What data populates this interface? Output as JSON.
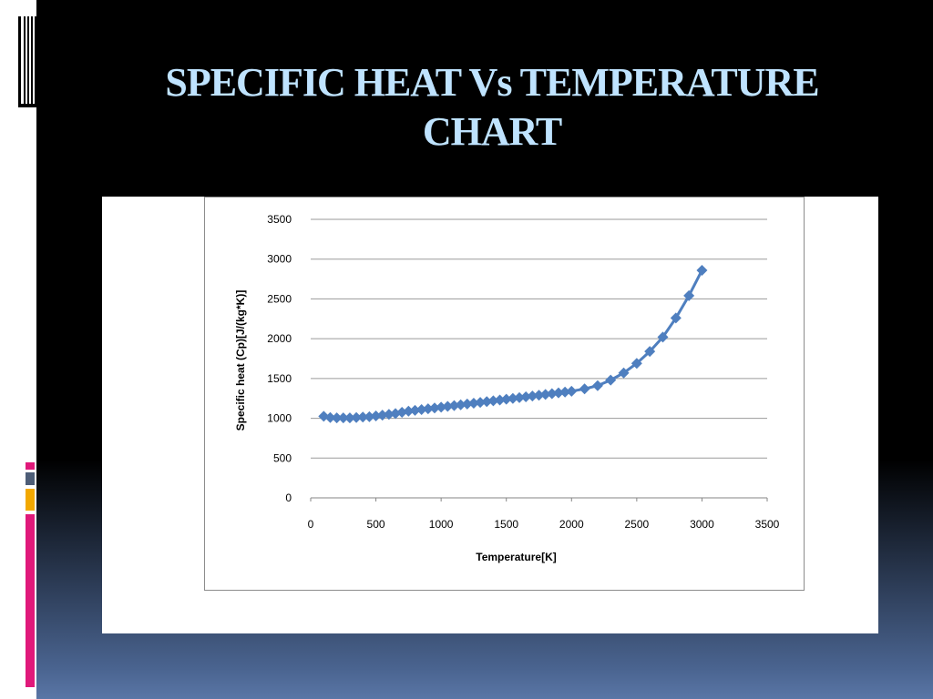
{
  "slide": {
    "title": "SPECIFIC HEAT Vs TEMPERATURE\nCHART",
    "colors": {
      "title": "#bfe3ff",
      "accent_pink": "#e0197a",
      "accent_gray": "#4d5d77",
      "accent_orange": "#f2a800",
      "series": "#4f7fbf"
    },
    "icons": [
      "document-stack-icon"
    ]
  },
  "chart_data": {
    "type": "scatter",
    "title": "",
    "xlabel": "Temperature[K]",
    "ylabel": "Specific heat (Cp)[J/(kg*K)]",
    "xlim": [
      0,
      3500
    ],
    "ylim": [
      0,
      3500
    ],
    "xticks": [
      0,
      500,
      1000,
      1500,
      2000,
      2500,
      3000,
      3500
    ],
    "yticks": [
      0,
      500,
      1000,
      1500,
      2000,
      2500,
      3000,
      3500
    ],
    "grid": "horizontal",
    "legend": "none",
    "marker": "diamond",
    "line": true,
    "series": [
      {
        "x": [
          100,
          150,
          200,
          250,
          300,
          350,
          400,
          450,
          500,
          550,
          600,
          650,
          700,
          750,
          800,
          850,
          900,
          950,
          1000,
          1050,
          1100,
          1150,
          1200,
          1250,
          1300,
          1350,
          1400,
          1450,
          1500,
          1550,
          1600,
          1650,
          1700,
          1750,
          1800,
          1850,
          1900,
          1950,
          2000,
          2100,
          2200,
          2300,
          2400,
          2500,
          2600,
          2700,
          2800,
          2900,
          3000
        ],
        "y": [
          1025,
          1010,
          1005,
          1005,
          1005,
          1010,
          1015,
          1020,
          1030,
          1040,
          1050,
          1060,
          1075,
          1090,
          1100,
          1110,
          1120,
          1130,
          1140,
          1150,
          1160,
          1170,
          1180,
          1190,
          1200,
          1210,
          1220,
          1230,
          1240,
          1250,
          1260,
          1270,
          1280,
          1290,
          1300,
          1310,
          1320,
          1330,
          1340,
          1370,
          1410,
          1480,
          1570,
          1690,
          1840,
          2020,
          2260,
          2540,
          2860
        ]
      }
    ]
  }
}
